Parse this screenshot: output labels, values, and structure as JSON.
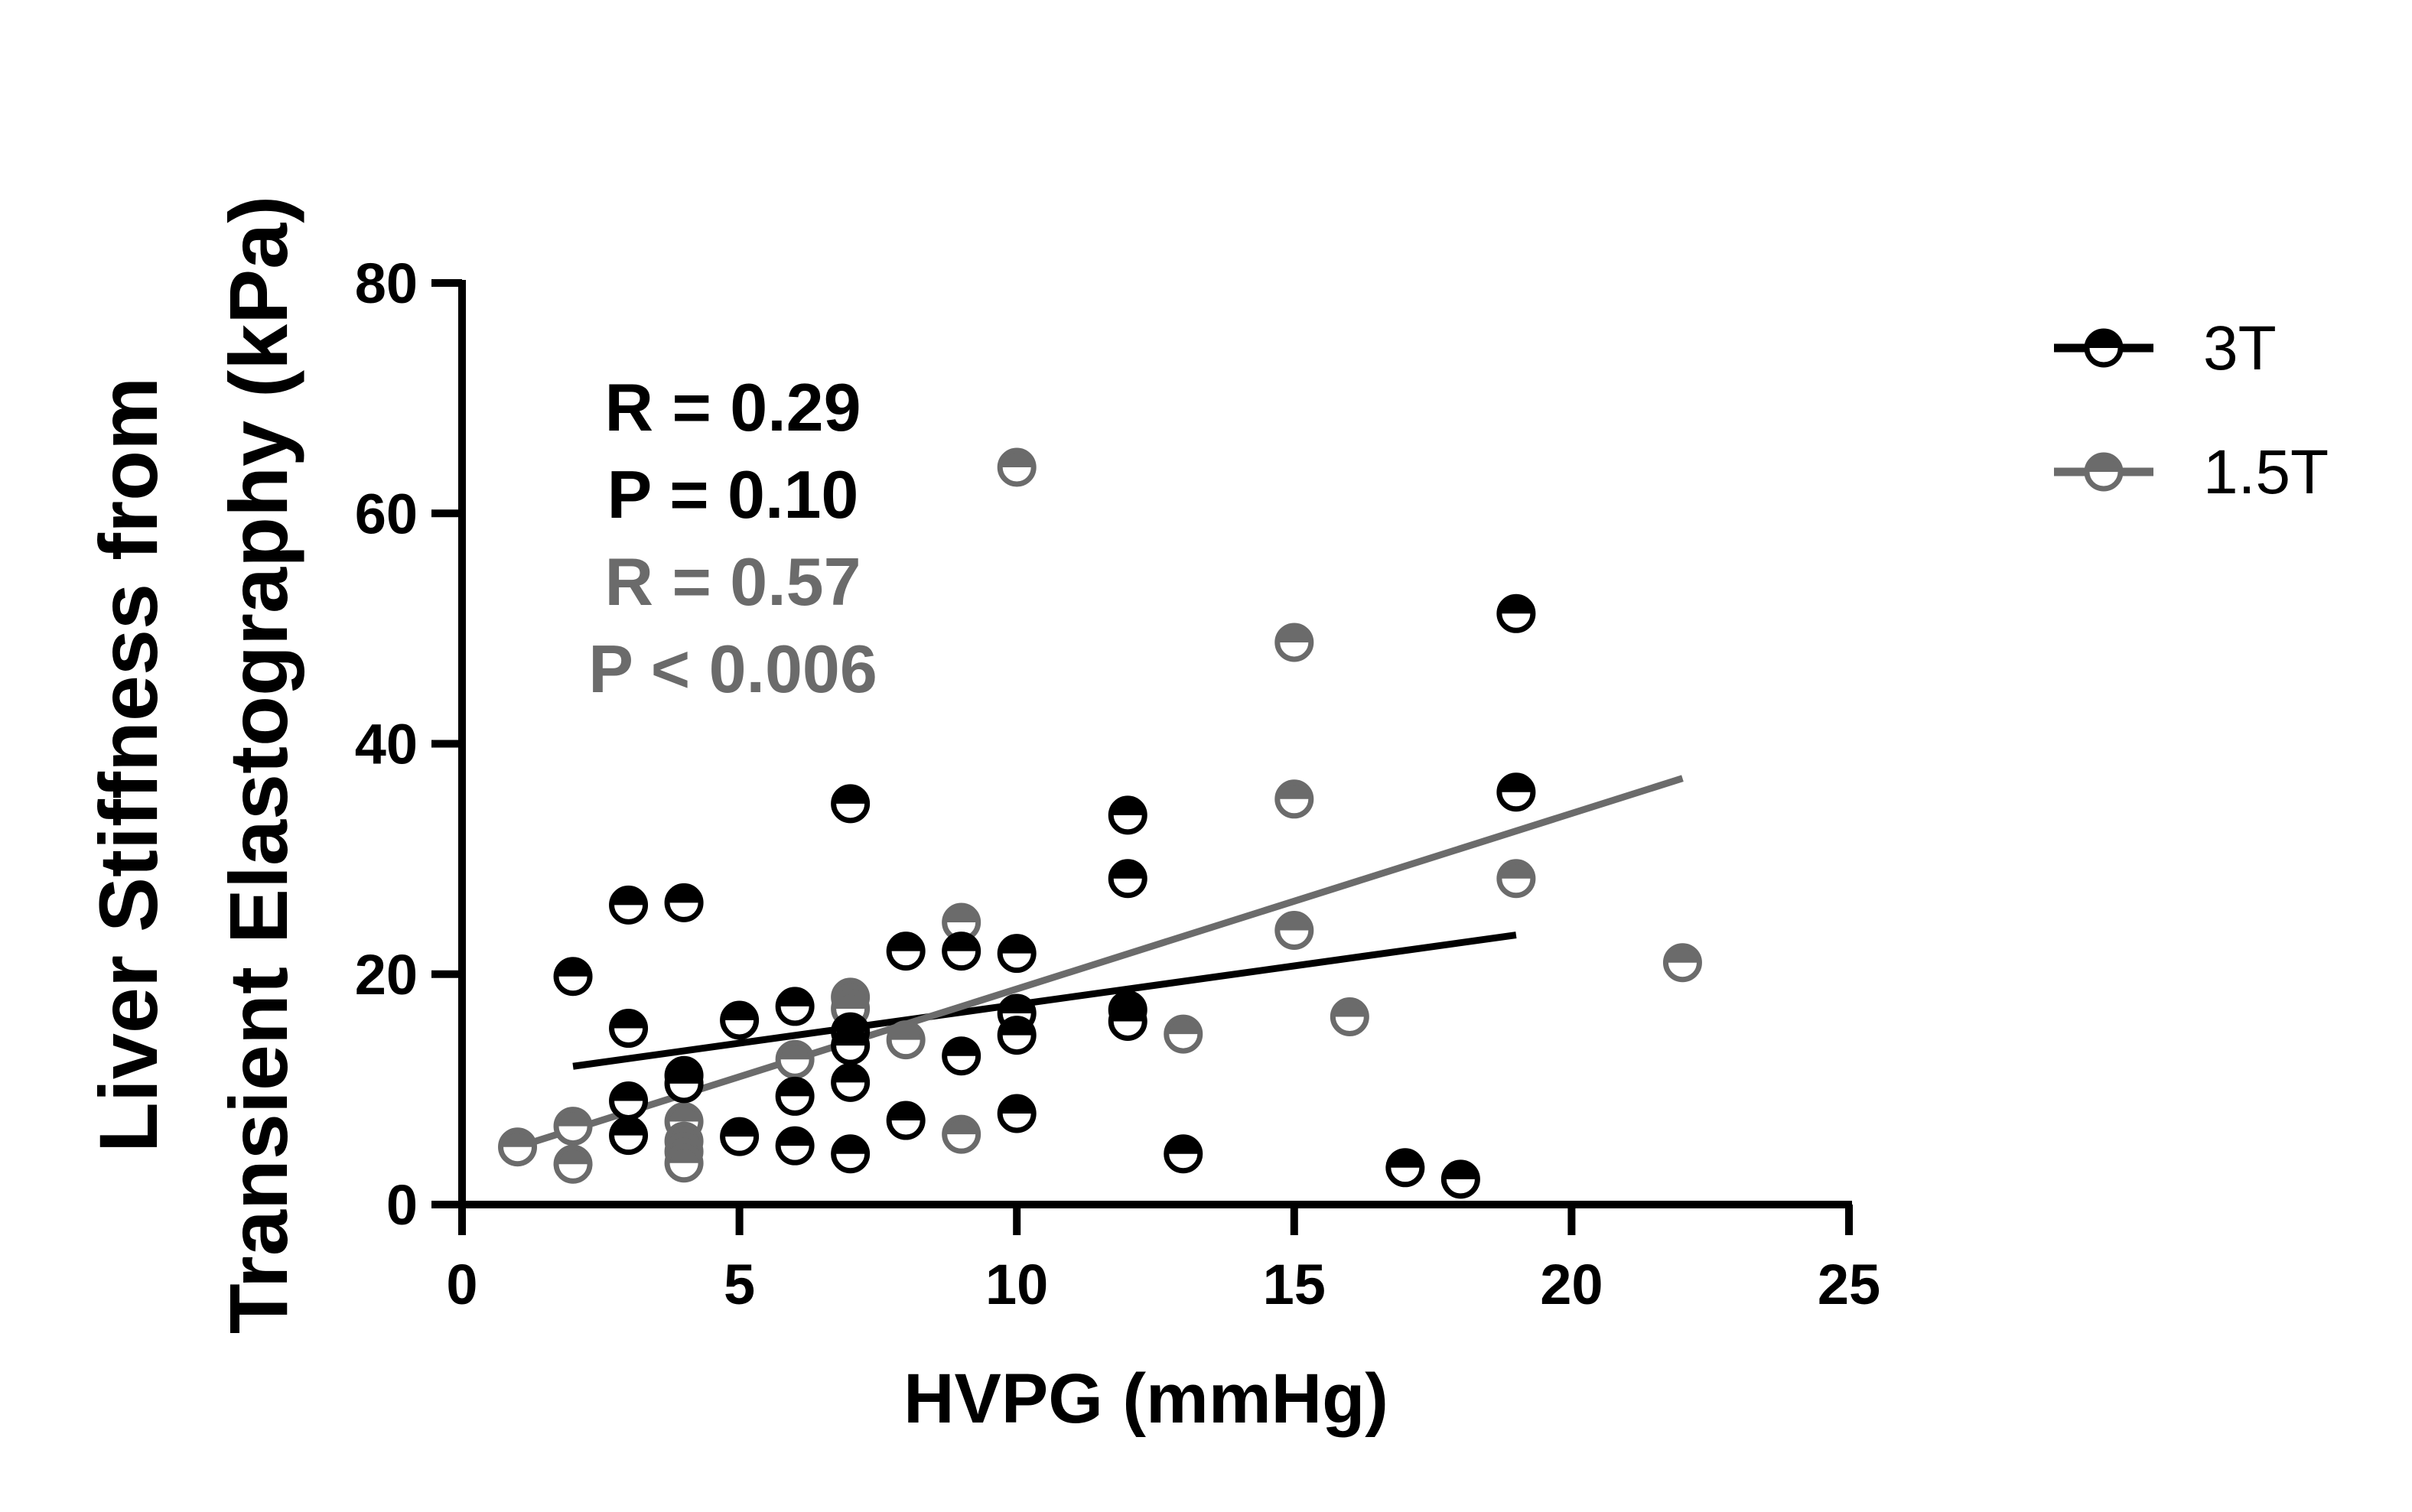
{
  "colors": {
    "s3T": "#000000",
    "s15T": "#6b6b6b",
    "axis": "#000000",
    "background": "#ffffff"
  },
  "chart_data": {
    "type": "scatter",
    "xlabel": "HVPG (mmHg)",
    "ylabel_line1": "Liver Stiffness from",
    "ylabel_line2": "Transient Elastography (kPa)",
    "xlim": [
      0,
      25
    ],
    "ylim": [
      0,
      80
    ],
    "xticks": [
      0,
      5,
      10,
      15,
      20,
      25
    ],
    "yticks": [
      0,
      20,
      40,
      60,
      80
    ],
    "grid": false,
    "legend_position": "top-right",
    "series": [
      {
        "name": "3T",
        "color": "#000000",
        "stats": [
          "R = 0.29",
          "P = 0.10"
        ],
        "fit_line": {
          "x": [
            2,
            19
          ],
          "y": [
            12.0,
            23.4
          ]
        },
        "points": [
          [
            2,
            19.8
          ],
          [
            3,
            26.0
          ],
          [
            3,
            15.3
          ],
          [
            3,
            9.0
          ],
          [
            3,
            6.0
          ],
          [
            4,
            26.2
          ],
          [
            4,
            11.2
          ],
          [
            4,
            10.5
          ],
          [
            5,
            16.0
          ],
          [
            5,
            5.9
          ],
          [
            6,
            17.2
          ],
          [
            6,
            9.4
          ],
          [
            6,
            5.1
          ],
          [
            7,
            34.8
          ],
          [
            7,
            15.0
          ],
          [
            7,
            13.8
          ],
          [
            7,
            10.6
          ],
          [
            7,
            4.4
          ],
          [
            8,
            22.0
          ],
          [
            8,
            7.3
          ],
          [
            9,
            22.0
          ],
          [
            9,
            12.9
          ],
          [
            10,
            21.8
          ],
          [
            10,
            16.6
          ],
          [
            10,
            14.7
          ],
          [
            10,
            7.9
          ],
          [
            12,
            33.8
          ],
          [
            12,
            28.3
          ],
          [
            12,
            16.9
          ],
          [
            12,
            15.9
          ],
          [
            13,
            4.4
          ],
          [
            17,
            3.2
          ],
          [
            18,
            2.2
          ],
          [
            19,
            51.3
          ],
          [
            19,
            35.8
          ]
        ]
      },
      {
        "name": "1.5T",
        "color": "#6b6b6b",
        "stats": [
          "R = 0.57",
          "P < 0.006"
        ],
        "fit_line": {
          "x": [
            1,
            22
          ],
          "y": [
            5.0,
            37.0
          ]
        },
        "points": [
          [
            1,
            5.0
          ],
          [
            2,
            6.8
          ],
          [
            2,
            3.5
          ],
          [
            4,
            7.2
          ],
          [
            4,
            5.5
          ],
          [
            4,
            4.6
          ],
          [
            4,
            3.6
          ],
          [
            6,
            12.6
          ],
          [
            7,
            18.0
          ],
          [
            7,
            17.0
          ],
          [
            8,
            14.3
          ],
          [
            9,
            24.5
          ],
          [
            9,
            6.1
          ],
          [
            10,
            64.0
          ],
          [
            13,
            14.8
          ],
          [
            15,
            48.8
          ],
          [
            15,
            35.2
          ],
          [
            15,
            23.8
          ],
          [
            16,
            16.3
          ],
          [
            19,
            28.3
          ],
          [
            22,
            21.0
          ]
        ]
      }
    ]
  }
}
